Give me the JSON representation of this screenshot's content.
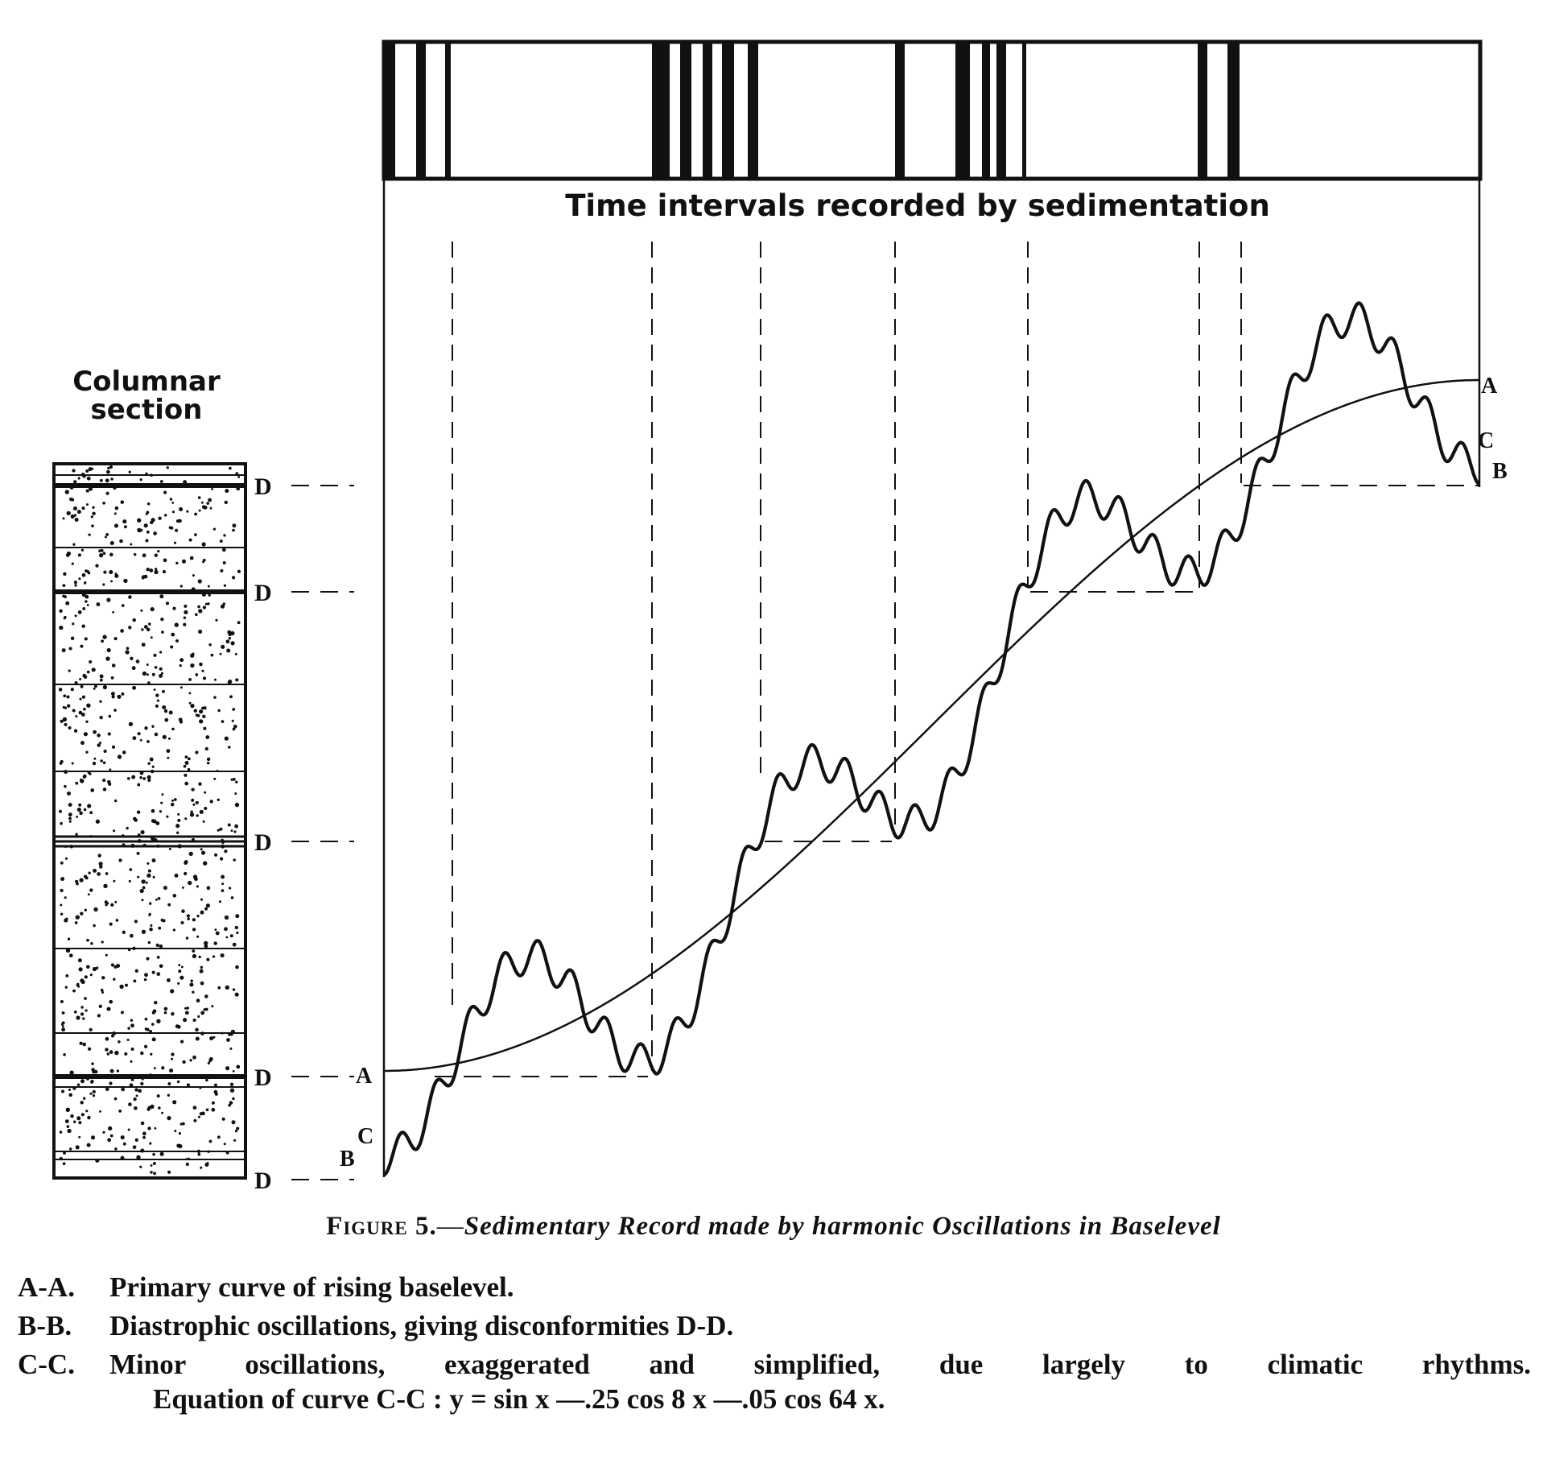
{
  "figure": {
    "time_bar_label": "Time intervals recorded by sedimentation",
    "columnar_label_line1": "Columnar",
    "columnar_label_line2": "section",
    "point_labels": {
      "a_left": "A",
      "a_right": "A",
      "b_left": "B",
      "b_right": "B",
      "c_left": "C",
      "c_right": "C"
    },
    "disconformity_label": "D",
    "caption_prefix": "Figure 5.",
    "caption_dash": "—",
    "caption_title": "Sedimentary Record made by harmonic Oscillations in Baselevel"
  },
  "legend": [
    {
      "key": "A-A.",
      "text": "Primary curve of rising baselevel."
    },
    {
      "key": "B-B.",
      "text": "Diastrophic oscillations, giving disconformities D-D."
    },
    {
      "key": "C-C.",
      "text": "Minor oscillations, exaggerated and simplified, due largely to climatic rhythms."
    }
  ],
  "equation": "Equation of curve C-C : y = sin x —.25 cos 8 x —.05 cos 64 x."
}
